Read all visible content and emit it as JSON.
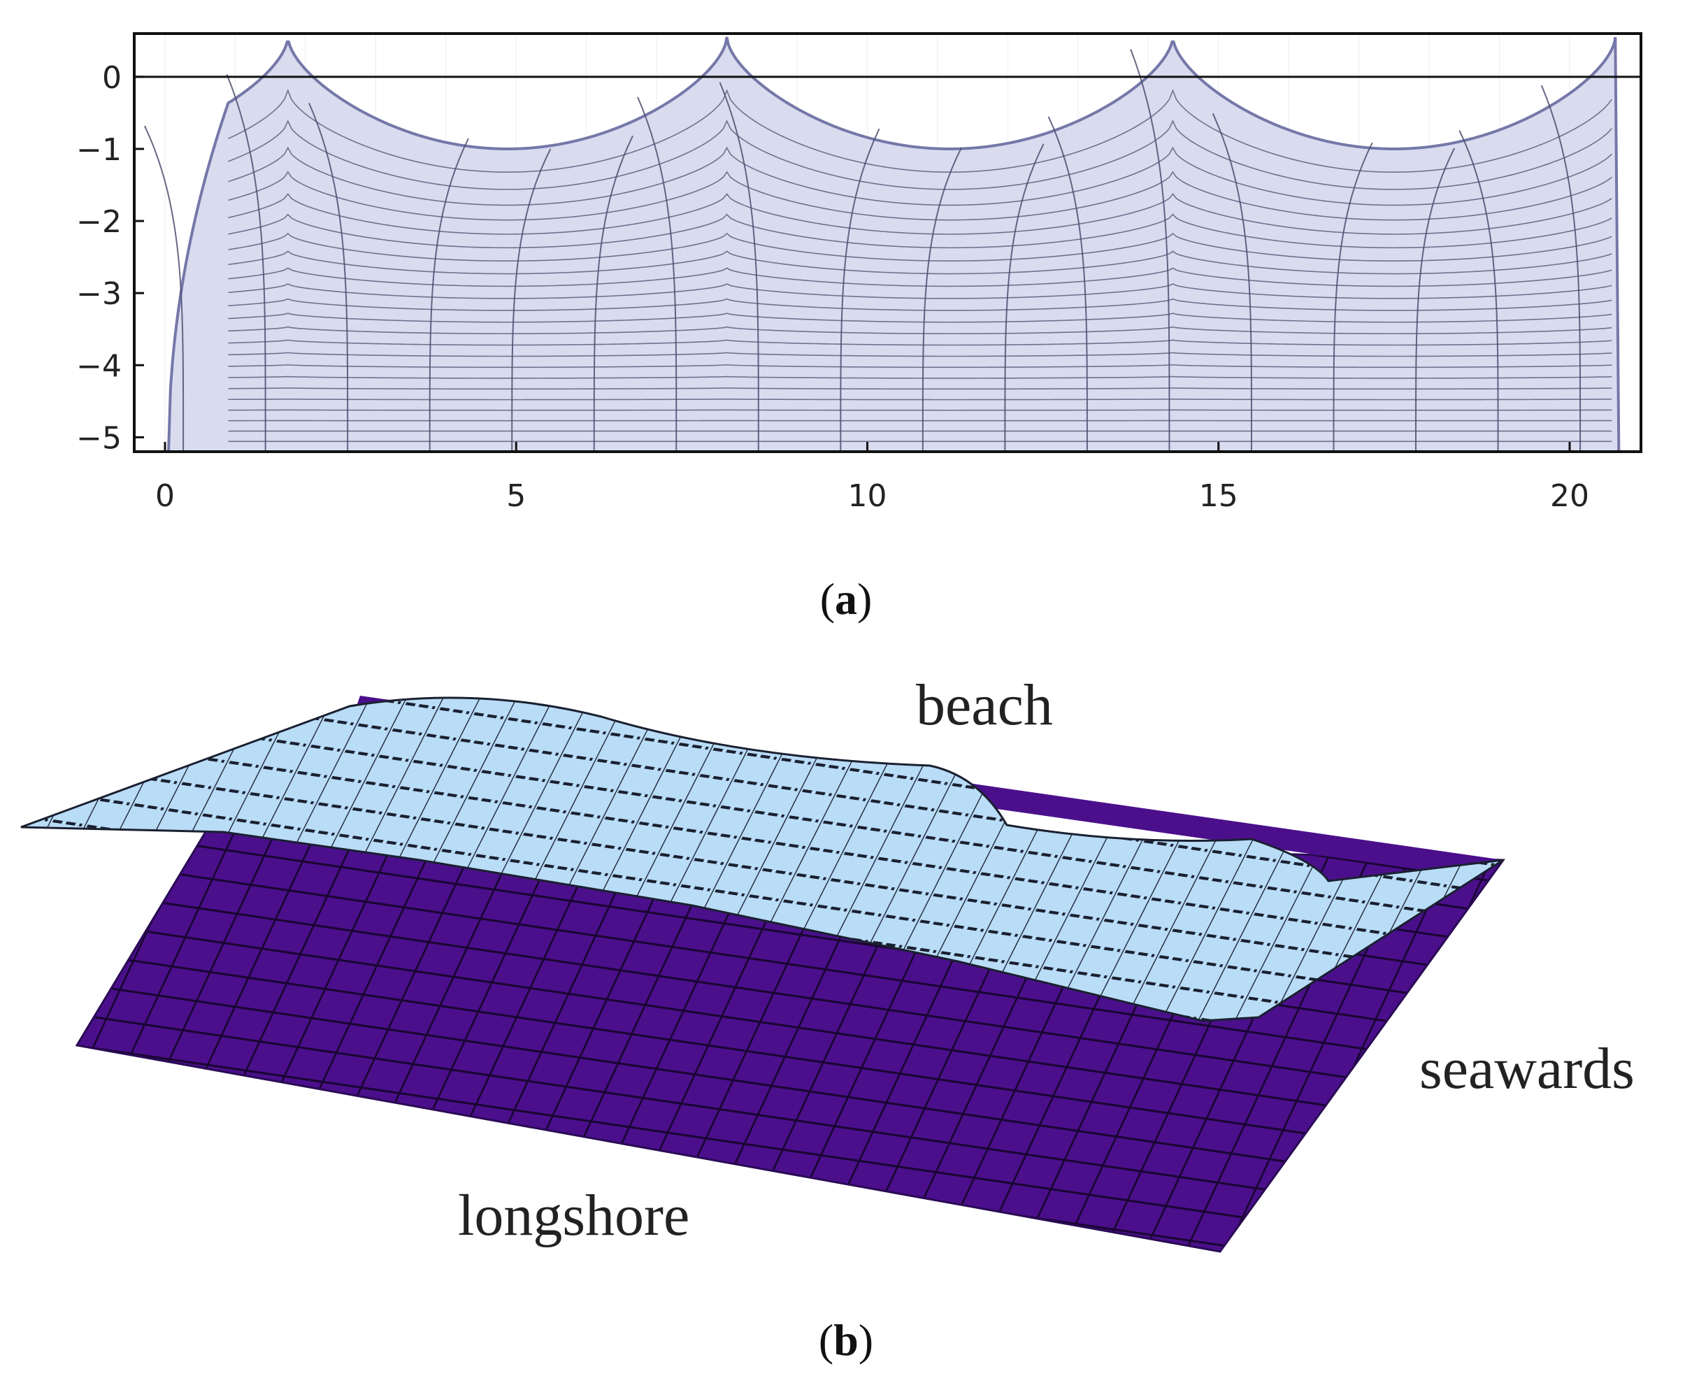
{
  "chart_data": [
    {
      "type": "line",
      "panel_label": "a",
      "xlim": [
        0,
        20.8
      ],
      "ylim": [
        -5.2,
        0.6
      ],
      "xticks": [
        0,
        5,
        10,
        15,
        20
      ],
      "yticks": [
        0,
        -1,
        -2,
        -3,
        -4,
        -5
      ],
      "reference_line_y": 0,
      "profile": {
        "x_start": 0.05,
        "x_end": 20.65,
        "crests": [
          1.75,
          8.0,
          14.35,
          20.65
        ],
        "crest_y": 0.55,
        "trough_y": -1.0,
        "bottom_y": -5.2
      },
      "grid": true,
      "fill_color": "#d9dcef",
      "line_color": "#7478a8",
      "mesh_color": "#4b4e6e"
    },
    {
      "type": "surface",
      "panel_label": "b",
      "annotations": [
        "beach",
        "seawards",
        "longshore"
      ],
      "surface_color": "#b9dcf7",
      "bottom_color": "#4b0f8c"
    }
  ],
  "captions": {
    "a_open": "(",
    "a": "a",
    "a_close": ")",
    "b_open": "(",
    "b": "b",
    "b_close": ")"
  },
  "labels3d": {
    "beach": "beach",
    "seawards": "seawards",
    "longshore": "longshore"
  }
}
